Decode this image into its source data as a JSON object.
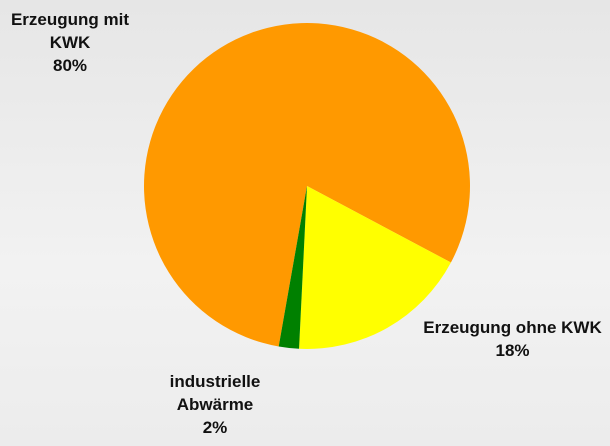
{
  "chart_data": {
    "type": "pie",
    "categories": [
      "Erzeugung mit KWK",
      "Erzeugung ohne KWK",
      "industrielle Abwärme"
    ],
    "values": [
      80,
      18,
      2
    ],
    "value_labels": [
      "80%",
      "18%",
      "2%"
    ],
    "colors": [
      "#ff9900",
      "#ffff00",
      "#008000"
    ]
  }
}
